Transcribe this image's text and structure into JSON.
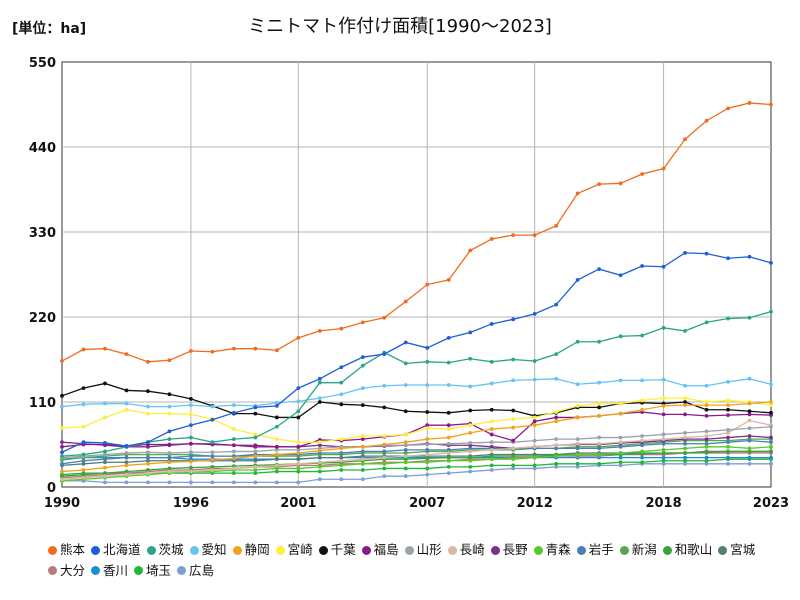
{
  "header": {
    "unit_label": "[単位：ha]",
    "title": "ミニトマト作付け面積[1990～2023]"
  },
  "chart_data": {
    "type": "line",
    "title": "ミニトマト作付け面積[1990～2023]",
    "unit": "[単位：ha]",
    "x": [
      1990,
      1991,
      1992,
      1993,
      1994,
      1995,
      1996,
      1997,
      1998,
      1999,
      2000,
      2001,
      2002,
      2003,
      2004,
      2005,
      2006,
      2007,
      2008,
      2009,
      2010,
      2011,
      2012,
      2013,
      2014,
      2015,
      2016,
      2017,
      2018,
      2019,
      2020,
      2021,
      2022,
      2023
    ],
    "xticks": [
      "1990",
      "1996",
      "2001",
      "2007",
      "2012",
      "2018",
      "2023"
    ],
    "ylim": [
      0,
      550
    ],
    "yticks": [
      "0",
      "110",
      "220",
      "330",
      "440",
      "550"
    ],
    "grid": true,
    "legend_position": "bottom",
    "series": [
      {
        "name": "熊本",
        "color": "#f26b1d",
        "values": [
          163,
          178,
          179,
          172,
          162,
          164,
          176,
          175,
          179,
          179,
          177,
          193,
          202,
          205,
          213,
          219,
          240,
          262,
          268,
          306,
          321,
          326,
          326,
          338,
          380,
          392,
          393,
          405,
          412,
          450,
          474,
          490,
          497,
          495
        ]
      },
      {
        "name": "北海道",
        "color": "#1f5fd6",
        "values": [
          45,
          58,
          57,
          53,
          58,
          72,
          80,
          87,
          96,
          103,
          105,
          128,
          140,
          155,
          168,
          172,
          187,
          180,
          193,
          200,
          211,
          217,
          224,
          236,
          268,
          282,
          274,
          286,
          285,
          303,
          302,
          296,
          298,
          290
        ]
      },
      {
        "name": "茨城",
        "color": "#2aa58a",
        "values": [
          40,
          42,
          46,
          52,
          58,
          62,
          64,
          58,
          62,
          64,
          78,
          98,
          135,
          135,
          157,
          174,
          160,
          162,
          161,
          166,
          162,
          165,
          163,
          172,
          188,
          188,
          195,
          196,
          206,
          202,
          213,
          218,
          219,
          227
        ]
      },
      {
        "name": "愛知",
        "color": "#66c4f2",
        "values": [
          104,
          107,
          108,
          108,
          104,
          104,
          106,
          104,
          106,
          105,
          109,
          111,
          115,
          120,
          128,
          131,
          132,
          132,
          132,
          130,
          134,
          138,
          139,
          140,
          133,
          135,
          138,
          138,
          139,
          131,
          131,
          136,
          140,
          133
        ]
      },
      {
        "name": "静岡",
        "color": "#f0a31d",
        "values": [
          20,
          22,
          25,
          28,
          30,
          32,
          33,
          35,
          37,
          40,
          42,
          44,
          47,
          50,
          52,
          55,
          58,
          62,
          64,
          70,
          75,
          77,
          80,
          85,
          90,
          92,
          95,
          100,
          105,
          106,
          106,
          106,
          108,
          110
        ]
      },
      {
        "name": "宮崎",
        "color": "#fcf03a",
        "values": [
          76,
          78,
          90,
          100,
          95,
          95,
          94,
          88,
          75,
          68,
          62,
          58,
          58,
          62,
          66,
          66,
          68,
          76,
          75,
          80,
          85,
          88,
          90,
          97,
          105,
          108,
          108,
          112,
          115,
          115,
          110,
          112,
          110,
          106
        ]
      },
      {
        "name": "千葉",
        "color": "#111111",
        "values": [
          118,
          128,
          134,
          125,
          124,
          120,
          114,
          105,
          95,
          95,
          90,
          90,
          110,
          107,
          106,
          103,
          98,
          97,
          96,
          99,
          100,
          99,
          92,
          96,
          103,
          103,
          108,
          109,
          108,
          110,
          100,
          100,
          98,
          96
        ]
      },
      {
        "name": "福島",
        "color": "#8a1a8c",
        "values": [
          52,
          55,
          55,
          53,
          55,
          55,
          56,
          55,
          54,
          52,
          52,
          52,
          61,
          60,
          62,
          65,
          68,
          80,
          80,
          82,
          68,
          60,
          85,
          90,
          90,
          92,
          95,
          97,
          94,
          94,
          92,
          93,
          94,
          93
        ]
      },
      {
        "name": "山形",
        "color": "#9aa3ad",
        "values": [
          38,
          40,
          42,
          44,
          45,
          44,
          45,
          45,
          46,
          46,
          48,
          48,
          50,
          52,
          52,
          54,
          54,
          55,
          56,
          57,
          58,
          58,
          60,
          62,
          62,
          64,
          64,
          66,
          68,
          70,
          72,
          74,
          76,
          78
        ]
      },
      {
        "name": "長崎",
        "color": "#d9b8a3",
        "values": [
          10,
          12,
          14,
          16,
          18,
          20,
          20,
          22,
          24,
          26,
          28,
          30,
          32,
          34,
          36,
          38,
          40,
          42,
          44,
          46,
          48,
          50,
          52,
          54,
          56,
          56,
          58,
          60,
          62,
          64,
          66,
          70,
          86,
          80
        ]
      },
      {
        "name": "長野",
        "color": "#7a2f8a",
        "values": [
          58,
          56,
          54,
          52,
          52,
          54,
          56,
          56,
          54,
          54,
          52,
          52,
          54,
          52,
          52,
          53,
          54,
          56,
          54,
          54,
          52,
          50,
          52,
          54,
          55,
          55,
          57,
          58,
          60,
          62,
          62,
          64,
          66,
          64
        ]
      },
      {
        "name": "青森",
        "color": "#5ac82a",
        "values": [
          8,
          10,
          12,
          14,
          16,
          18,
          20,
          20,
          22,
          22,
          24,
          24,
          26,
          28,
          30,
          30,
          32,
          32,
          34,
          34,
          36,
          36,
          38,
          40,
          42,
          42,
          44,
          46,
          48,
          50,
          52,
          52,
          50,
          52
        ]
      },
      {
        "name": "岩手",
        "color": "#4b7fb8",
        "values": [
          30,
          34,
          36,
          38,
          38,
          38,
          40,
          40,
          40,
          42,
          42,
          42,
          44,
          44,
          46,
          46,
          48,
          48,
          48,
          50,
          50,
          50,
          50,
          50,
          50,
          50,
          52,
          54,
          56,
          56,
          56,
          58,
          60,
          58
        ]
      },
      {
        "name": "新潟",
        "color": "#54a84e",
        "values": [
          35,
          38,
          40,
          42,
          42,
          42,
          42,
          40,
          40,
          40,
          40,
          40,
          42,
          42,
          44,
          44,
          44,
          46,
          46,
          48,
          48,
          48,
          50,
          50,
          52,
          52,
          54,
          56,
          58,
          60,
          60,
          60,
          62,
          62
        ]
      },
      {
        "name": "和歌山",
        "color": "#3aa33a",
        "values": [
          14,
          16,
          18,
          20,
          22,
          24,
          25,
          26,
          27,
          28,
          29,
          30,
          31,
          32,
          34,
          36,
          36,
          37,
          38,
          38,
          40,
          40,
          40,
          41,
          42,
          42,
          42,
          43,
          44,
          44,
          45,
          46,
          46,
          46
        ]
      },
      {
        "name": "宮城",
        "color": "#4f7f76",
        "values": [
          28,
          30,
          32,
          32,
          34,
          34,
          34,
          34,
          34,
          34,
          36,
          36,
          38,
          38,
          40,
          40,
          40,
          40,
          40,
          40,
          42,
          42,
          42,
          42,
          44,
          44,
          44,
          44,
          44,
          44,
          46,
          46,
          46,
          46
        ]
      },
      {
        "name": "大分",
        "color": "#b87a7a",
        "values": [
          12,
          14,
          16,
          18,
          20,
          22,
          22,
          24,
          24,
          26,
          26,
          28,
          28,
          30,
          30,
          32,
          32,
          34,
          34,
          36,
          36,
          38,
          38,
          40,
          40,
          40,
          42,
          42,
          42,
          44,
          44,
          44,
          44,
          44
        ]
      },
      {
        "name": "香川",
        "color": "#1a8fd6",
        "values": [
          36,
          38,
          38,
          38,
          38,
          38,
          36,
          36,
          36,
          36,
          36,
          36,
          38,
          38,
          38,
          38,
          38,
          38,
          38,
          38,
          38,
          38,
          38,
          38,
          38,
          38,
          38,
          38,
          38,
          38,
          38,
          38,
          38,
          38
        ]
      },
      {
        "name": "埼玉",
        "color": "#22b53a",
        "values": [
          16,
          18,
          18,
          18,
          18,
          18,
          18,
          18,
          18,
          18,
          20,
          20,
          20,
          22,
          22,
          24,
          24,
          24,
          26,
          26,
          28,
          28,
          28,
          30,
          30,
          30,
          32,
          32,
          34,
          34,
          34,
          36,
          36,
          36
        ]
      },
      {
        "name": "広島",
        "color": "#7d9fd6",
        "values": [
          8,
          8,
          6,
          6,
          6,
          6,
          6,
          6,
          6,
          6,
          6,
          6,
          10,
          10,
          10,
          14,
          14,
          16,
          18,
          20,
          22,
          24,
          24,
          26,
          26,
          28,
          28,
          30,
          30,
          30,
          30,
          30,
          30,
          30
        ]
      }
    ]
  }
}
